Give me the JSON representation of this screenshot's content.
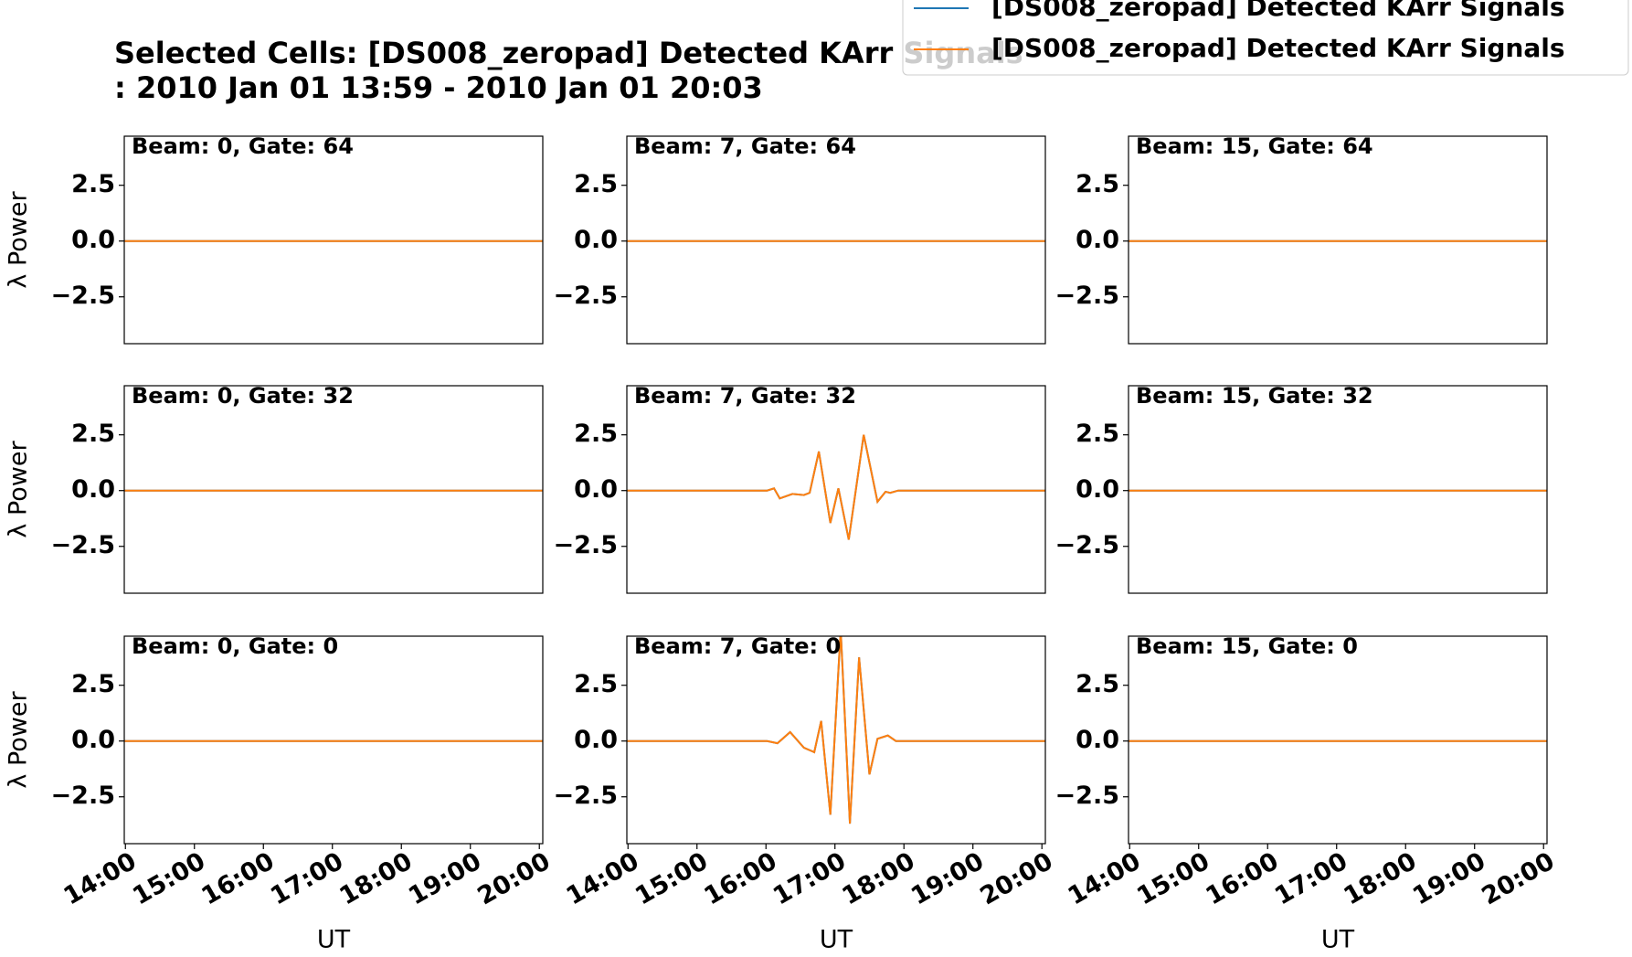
{
  "figure": {
    "title": "Selected Cells: [DS008_zeropad] Detected KArr Signals",
    "subtitle": ": 2010 Jan 01 13:59 - 2010 Jan 01 20:03"
  },
  "chart_data": [
    {
      "type": "line",
      "title": "Beam: 0, Gate: 64",
      "x": [
        "13:59",
        "20:03"
      ],
      "xlim": [
        "13:59",
        "20:03"
      ],
      "ylim": [
        -4.6,
        4.7
      ],
      "yticks": [
        {
          "value": -2.5,
          "label": "−2.5"
        },
        {
          "value": 0,
          "label": "0.0"
        },
        2.5
      ],
      "ylabel": "λ Power",
      "series": [
        {
          "name": "[DS008_zeropad] Detected KArr Signals",
          "color": "#1f77b4",
          "values": [
            0,
            0
          ]
        },
        {
          "name": "[DS008_zeropad] Detected KArr Signals",
          "color": "#ff7f0e",
          "values": [
            0,
            0
          ]
        }
      ]
    },
    {
      "type": "line",
      "title": "Beam: 7, Gate: 64",
      "x": [
        "13:59",
        "20:03"
      ],
      "xlim": [
        "13:59",
        "20:03"
      ],
      "ylim": [
        -4.6,
        4.7
      ],
      "yticks": [
        {
          "value": -2.5,
          "label": "−2.5"
        },
        {
          "value": 0,
          "label": "0.0"
        },
        2.5
      ],
      "series": [
        {
          "name": "[DS008_zeropad] Detected KArr Signals",
          "color": "#1f77b4",
          "values": [
            0,
            0
          ]
        },
        {
          "name": "[DS008_zeropad] Detected KArr Signals",
          "color": "#ff7f0e",
          "values": [
            0,
            0
          ]
        }
      ]
    },
    {
      "type": "line",
      "title": "Beam: 15, Gate: 64",
      "x": [
        "13:59",
        "20:03"
      ],
      "xlim": [
        "13:59",
        "20:03"
      ],
      "ylim": [
        -4.6,
        4.7
      ],
      "yticks": [
        {
          "value": -2.5,
          "label": "−2.5"
        },
        {
          "value": 0,
          "label": "0.0"
        },
        2.5
      ],
      "series": [
        {
          "name": "[DS008_zeropad] Detected KArr Signals",
          "color": "#1f77b4",
          "values": [
            0,
            0
          ]
        },
        {
          "name": "[DS008_zeropad] Detected KArr Signals",
          "color": "#ff7f0e",
          "values": [
            0,
            0
          ]
        }
      ]
    },
    {
      "type": "line",
      "title": "Beam: 0, Gate: 32",
      "x": [
        "13:59",
        "20:03"
      ],
      "xlim": [
        "13:59",
        "20:03"
      ],
      "ylim": [
        -4.6,
        4.7
      ],
      "yticks": [
        {
          "value": -2.5,
          "label": "−2.5"
        },
        {
          "value": 0,
          "label": "0.0"
        },
        2.5
      ],
      "ylabel": "λ Power",
      "series": [
        {
          "name": "[DS008_zeropad] Detected KArr Signals",
          "color": "#1f77b4",
          "values": [
            0,
            0
          ]
        },
        {
          "name": "[DS008_zeropad] Detected KArr Signals",
          "color": "#ff7f0e",
          "values": [
            0,
            0
          ]
        }
      ]
    },
    {
      "type": "line",
      "title": "Beam: 7, Gate: 32",
      "x": [
        "13:59",
        "16:01",
        "16:07",
        "16:12",
        "16:23",
        "16:33",
        "16:38",
        "16:46",
        "16:56",
        "17:03",
        "17:12",
        "17:25",
        "17:37",
        "17:44",
        "17:48",
        "17:55",
        "20:03"
      ],
      "xlim": [
        "13:59",
        "20:03"
      ],
      "ylim": [
        -4.6,
        4.7
      ],
      "yticks": [
        {
          "value": -2.5,
          "label": "−2.5"
        },
        {
          "value": 0,
          "label": "0.0"
        },
        2.5
      ],
      "series": [
        {
          "name": "[DS008_zeropad] Detected KArr Signals",
          "color": "#1f77b4",
          "values": [
            0,
            0,
            0.1,
            -0.35,
            -0.15,
            -0.2,
            -0.1,
            1.75,
            -1.45,
            0.1,
            -2.2,
            2.5,
            -0.5,
            -0.05,
            -0.1,
            0,
            0
          ]
        },
        {
          "name": "[DS008_zeropad] Detected KArr Signals",
          "color": "#ff7f0e",
          "values": [
            0,
            0,
            0.1,
            -0.35,
            -0.15,
            -0.2,
            -0.1,
            1.75,
            -1.45,
            0.1,
            -2.2,
            2.5,
            -0.5,
            -0.05,
            -0.1,
            0,
            0
          ]
        }
      ]
    },
    {
      "type": "line",
      "title": "Beam: 15, Gate: 32",
      "x": [
        "13:59",
        "20:03"
      ],
      "xlim": [
        "13:59",
        "20:03"
      ],
      "ylim": [
        -4.6,
        4.7
      ],
      "yticks": [
        {
          "value": -2.5,
          "label": "−2.5"
        },
        {
          "value": 0,
          "label": "0.0"
        },
        2.5
      ],
      "series": [
        {
          "name": "[DS008_zeropad] Detected KArr Signals",
          "color": "#1f77b4",
          "values": [
            0,
            0
          ]
        },
        {
          "name": "[DS008_zeropad] Detected KArr Signals",
          "color": "#ff7f0e",
          "values": [
            0,
            0
          ]
        }
      ]
    },
    {
      "type": "line",
      "title": "Beam: 0, Gate: 0",
      "x": [
        "13:59",
        "20:03"
      ],
      "xlim": [
        "13:59",
        "20:03"
      ],
      "ylim": [
        -4.6,
        4.7
      ],
      "yticks": [
        {
          "value": -2.5,
          "label": "−2.5"
        },
        {
          "value": 0,
          "label": "0.0"
        },
        2.5
      ],
      "ylabel": "λ Power",
      "xlabel": "UT",
      "xticks": [
        "14:00",
        "15:00",
        "16:00",
        "17:00",
        "18:00",
        "19:00",
        "20:00"
      ],
      "series": [
        {
          "name": "[DS008_zeropad] Detected KArr Signals",
          "color": "#1f77b4",
          "values": [
            0,
            0
          ]
        },
        {
          "name": "[DS008_zeropad] Detected KArr Signals",
          "color": "#ff7f0e",
          "values": [
            0,
            0
          ]
        }
      ]
    },
    {
      "type": "line",
      "title": "Beam: 7, Gate: 0",
      "x": [
        "13:59",
        "16:01",
        "16:10",
        "16:21",
        "16:33",
        "16:42",
        "16:48",
        "16:56",
        "17:05",
        "17:13",
        "17:21",
        "17:30",
        "17:37",
        "17:46",
        "17:53",
        "20:03"
      ],
      "xlim": [
        "13:59",
        "20:03"
      ],
      "ylim": [
        -4.6,
        4.7
      ],
      "yticks": [
        {
          "value": -2.5,
          "label": "−2.5"
        },
        {
          "value": 0,
          "label": "0.0"
        },
        2.5
      ],
      "xlabel": "UT",
      "xticks": [
        "14:00",
        "15:00",
        "16:00",
        "17:00",
        "18:00",
        "19:00",
        "20:00"
      ],
      "series": [
        {
          "name": "[DS008_zeropad] Detected KArr Signals",
          "color": "#1f77b4",
          "values": [
            0,
            0,
            -0.1,
            0.4,
            -0.3,
            -0.5,
            0.9,
            -3.3,
            5.0,
            -3.7,
            3.75,
            -1.5,
            0.1,
            0.25,
            0,
            0
          ]
        },
        {
          "name": "[DS008_zeropad] Detected KArr Signals",
          "color": "#ff7f0e",
          "values": [
            0,
            0,
            -0.1,
            0.4,
            -0.3,
            -0.5,
            0.9,
            -3.3,
            5.0,
            -3.7,
            3.75,
            -1.5,
            0.1,
            0.25,
            0,
            0
          ]
        }
      ]
    },
    {
      "type": "line",
      "title": "Beam: 15, Gate: 0",
      "x": [
        "13:59",
        "20:03"
      ],
      "xlim": [
        "13:59",
        "20:03"
      ],
      "ylim": [
        -4.6,
        4.7
      ],
      "yticks": [
        {
          "value": -2.5,
          "label": "−2.5"
        },
        {
          "value": 0,
          "label": "0.0"
        },
        2.5
      ],
      "xlabel": "UT",
      "xticks": [
        "14:00",
        "15:00",
        "16:00",
        "17:00",
        "18:00",
        "19:00",
        "20:00"
      ],
      "series": [
        {
          "name": "[DS008_zeropad] Detected KArr Signals",
          "color": "#1f77b4",
          "values": [
            0,
            0
          ]
        },
        {
          "name": "[DS008_zeropad] Detected KArr Signals",
          "color": "#ff7f0e",
          "values": [
            0,
            0
          ]
        }
      ]
    }
  ]
}
